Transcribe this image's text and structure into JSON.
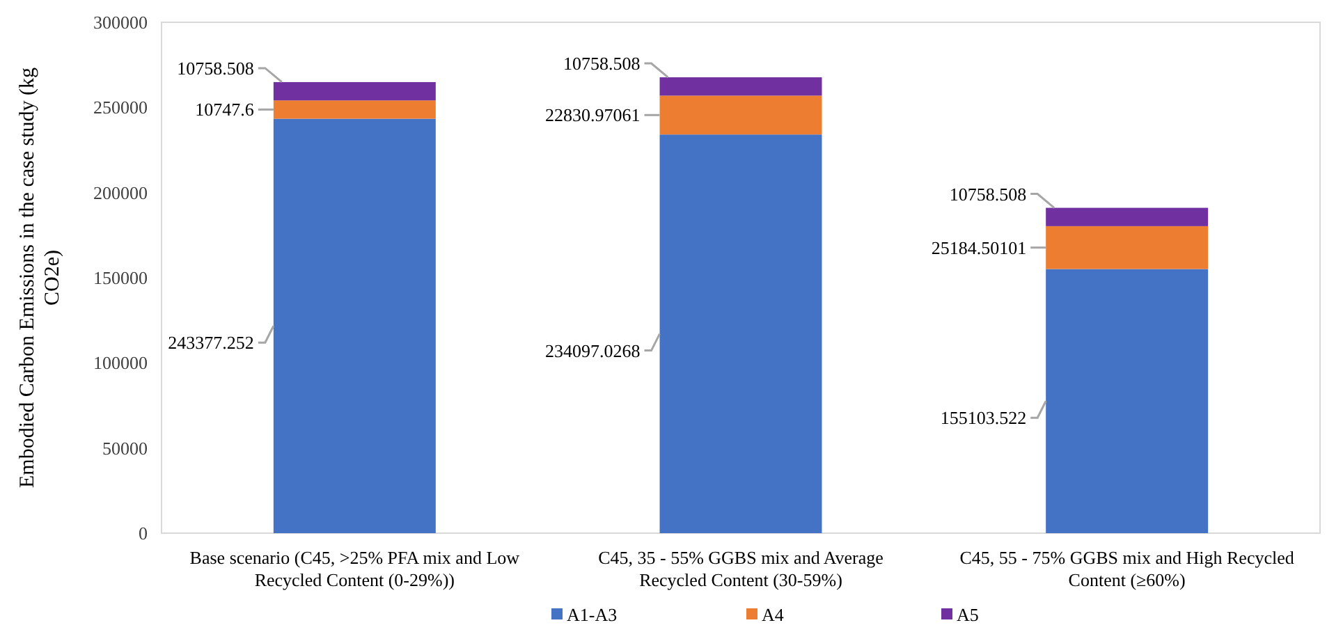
{
  "chart_data": {
    "type": "bar",
    "stacked": true,
    "ylabel": "Embodied Carbon Emissions in the case study (kg CO2e)",
    "categories": [
      "Base scenario (C45, >25% PFA mix and Low Recycled Content (0-29%))",
      "C45, 35 - 55% GGBS mix and Average Recycled Content (30-59%)",
      "C45, 55 - 75% GGBS mix and High Recycled Content (≥60%)"
    ],
    "series": [
      {
        "name": "A1-A3",
        "color": "#4472c4",
        "values": [
          243377.252,
          234097.0268,
          155103.522
        ]
      },
      {
        "name": "A4",
        "color": "#ed7d31",
        "values": [
          10747.6,
          22830.97061,
          25184.50101
        ]
      },
      {
        "name": "A5",
        "color": "#7030a0",
        "values": [
          10758.508,
          10758.508,
          10758.508
        ]
      }
    ],
    "ylim": [
      0,
      300000
    ],
    "yticks": [
      0,
      50000,
      100000,
      150000,
      200000,
      250000,
      300000
    ],
    "data_labels": true,
    "grid": false,
    "legend": "bottom"
  }
}
